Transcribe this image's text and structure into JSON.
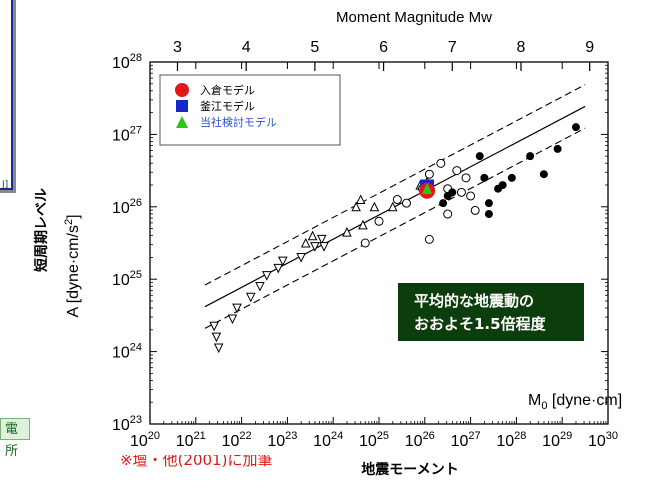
{
  "left_labels": {
    "inset_mark": "J]",
    "green_label": "電所"
  },
  "note": "※壇・他(2001)に加筆",
  "chart_data": {
    "type": "scatter",
    "title": "",
    "top_axis_label": "Moment Magnitude Mw",
    "top_ticks": [
      "3",
      "4",
      "5",
      "6",
      "7",
      "8",
      "9"
    ],
    "xlabel": "地震モーメント",
    "x_axis_label_inner": "M0 [dyne·cm]",
    "ylabel": "A [dyne·cm/s²]",
    "ylabel_jp": "短周期レベル",
    "xlim_log10": [
      20,
      30
    ],
    "ylim_log10": [
      23,
      28
    ],
    "x_tick_exponents": [
      "20",
      "21",
      "22",
      "23",
      "24",
      "25",
      "26",
      "27",
      "28",
      "29",
      "30"
    ],
    "y_tick_exponents": [
      "23",
      "24",
      "25",
      "26",
      "27",
      "28"
    ],
    "tick_base": "10",
    "legend": {
      "placement": "top-left",
      "items": [
        {
          "label": "入倉モデル",
          "marker": "circle",
          "color": "#e01818"
        },
        {
          "label": "釜江モデル",
          "marker": "square",
          "color": "#1428c8"
        },
        {
          "label": "当社検討モデル",
          "marker": "triangle",
          "color": "#2ec41c",
          "text_color": "#3050d0"
        }
      ]
    },
    "annotation": {
      "lines": [
        "平均的な地震動の",
        "おおよそ1.5倍程度"
      ],
      "bg": "#0c3d0c",
      "fg": "#ffffff"
    },
    "regression": {
      "slope": 0.3333,
      "intercept_log10A_at_M0_26": 26.22,
      "band_factor_log10": 0.3
    },
    "series": [
      {
        "marker": "inverted-triangle-open",
        "points": [
          [
            21.4,
            24.35
          ],
          [
            21.45,
            24.2
          ],
          [
            21.5,
            24.05
          ],
          [
            21.8,
            24.45
          ],
          [
            21.9,
            24.6
          ],
          [
            22.2,
            24.75
          ],
          [
            22.4,
            24.9
          ],
          [
            22.55,
            25.05
          ],
          [
            22.8,
            25.15
          ],
          [
            22.9,
            25.25
          ],
          [
            23.3,
            25.3
          ],
          [
            23.6,
            25.45
          ],
          [
            23.75,
            25.55
          ],
          [
            23.8,
            25.45
          ]
        ]
      },
      {
        "marker": "triangle-open",
        "points": [
          [
            23.4,
            25.5
          ],
          [
            23.55,
            25.6
          ],
          [
            24.3,
            25.65
          ],
          [
            24.5,
            26.0
          ],
          [
            24.6,
            26.1
          ],
          [
            24.65,
            25.75
          ],
          [
            24.9,
            26.0
          ],
          [
            25.3,
            26.0
          ],
          [
            25.9,
            26.3
          ],
          [
            26.05,
            26.35
          ]
        ]
      },
      {
        "marker": "circle-open",
        "points": [
          [
            24.7,
            25.5
          ],
          [
            25.0,
            25.8
          ],
          [
            25.4,
            26.1
          ],
          [
            25.6,
            26.05
          ],
          [
            25.95,
            26.25
          ],
          [
            26.1,
            26.45
          ],
          [
            26.35,
            26.6
          ],
          [
            26.7,
            26.5
          ],
          [
            26.8,
            26.2
          ],
          [
            27.1,
            25.95
          ],
          [
            27.0,
            26.15
          ],
          [
            26.1,
            25.55
          ],
          [
            26.5,
            25.9
          ],
          [
            26.9,
            26.4
          ],
          [
            26.5,
            26.25
          ]
        ]
      },
      {
        "marker": "circle-filled",
        "points": [
          [
            26.4,
            26.05
          ],
          [
            26.5,
            26.15
          ],
          [
            26.6,
            26.2
          ],
          [
            27.2,
            26.7
          ],
          [
            27.3,
            26.4
          ],
          [
            27.4,
            26.05
          ],
          [
            27.6,
            26.25
          ],
          [
            27.4,
            25.9
          ],
          [
            27.7,
            26.3
          ],
          [
            27.9,
            26.4
          ],
          [
            28.3,
            26.7
          ],
          [
            28.6,
            26.45
          ],
          [
            28.9,
            26.8
          ],
          [
            29.3,
            27.1
          ]
        ]
      },
      {
        "name": "入倉モデル",
        "marker": "circle-red",
        "points": [
          [
            26.05,
            26.25
          ]
        ]
      },
      {
        "name": "釜江モデル",
        "marker": "square-blue",
        "points": [
          [
            26.05,
            26.28
          ]
        ]
      },
      {
        "name": "当社検討モデル",
        "marker": "triangle-green",
        "points": [
          [
            26.05,
            26.26
          ]
        ]
      }
    ]
  },
  "colors": {
    "inset_border": "#1a2b9c",
    "axis": "#000000",
    "annotation_bg": "#0c3d0c"
  }
}
